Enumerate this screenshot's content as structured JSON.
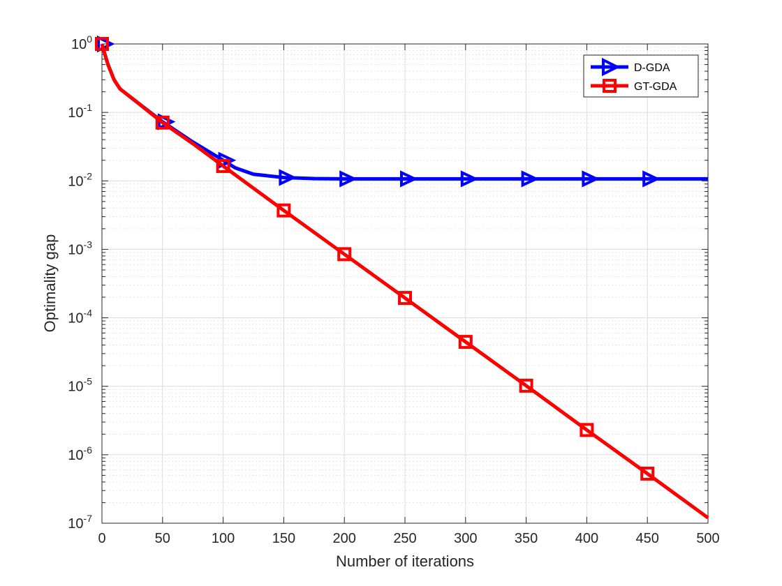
{
  "chart_data": {
    "type": "line",
    "title": "",
    "xlabel": "Number of iterations",
    "ylabel": "Optimality gap",
    "xlim": [
      0,
      500
    ],
    "ylim": [
      1e-07,
      1
    ],
    "yscale": "log",
    "grid": true,
    "minor_grid": true,
    "legend": "top-right",
    "x_ticks": [
      0,
      50,
      100,
      150,
      200,
      250,
      300,
      350,
      400,
      450,
      500
    ],
    "y_tick_exponents": [
      0,
      -1,
      -2,
      -3,
      -4,
      -5,
      -6,
      -7
    ],
    "series": [
      {
        "name": "D-GDA",
        "color": "#0000ff",
        "marker": "triangle-right",
        "x": [
          0,
          2,
          5,
          10,
          15,
          25,
          50,
          75,
          100,
          110,
          125,
          150,
          175,
          200,
          250,
          300,
          350,
          400,
          450,
          500
        ],
        "y": [
          1.0,
          0.75,
          0.5,
          0.3,
          0.22,
          0.16,
          0.073,
          0.037,
          0.02,
          0.0155,
          0.0125,
          0.0112,
          0.0108,
          0.0107,
          0.0107,
          0.0107,
          0.0107,
          0.0107,
          0.0107,
          0.0107
        ],
        "markers_x": [
          0,
          50,
          100,
          150,
          200,
          250,
          300,
          350,
          400,
          450
        ]
      },
      {
        "name": "GT-GDA",
        "color": "#ff0000",
        "marker": "square",
        "x": [
          0,
          2,
          5,
          10,
          15,
          25,
          50,
          75,
          100,
          150,
          200,
          250,
          300,
          350,
          400,
          450,
          500
        ],
        "y": [
          1.0,
          0.75,
          0.5,
          0.3,
          0.22,
          0.16,
          0.071,
          0.035,
          0.0165,
          0.0037,
          0.00085,
          0.000195,
          4.45e-05,
          1.02e-05,
          2.3e-06,
          5.3e-07,
          1.2e-07
        ],
        "markers_x": [
          0,
          50,
          100,
          150,
          200,
          250,
          300,
          350,
          400,
          450
        ]
      }
    ]
  }
}
